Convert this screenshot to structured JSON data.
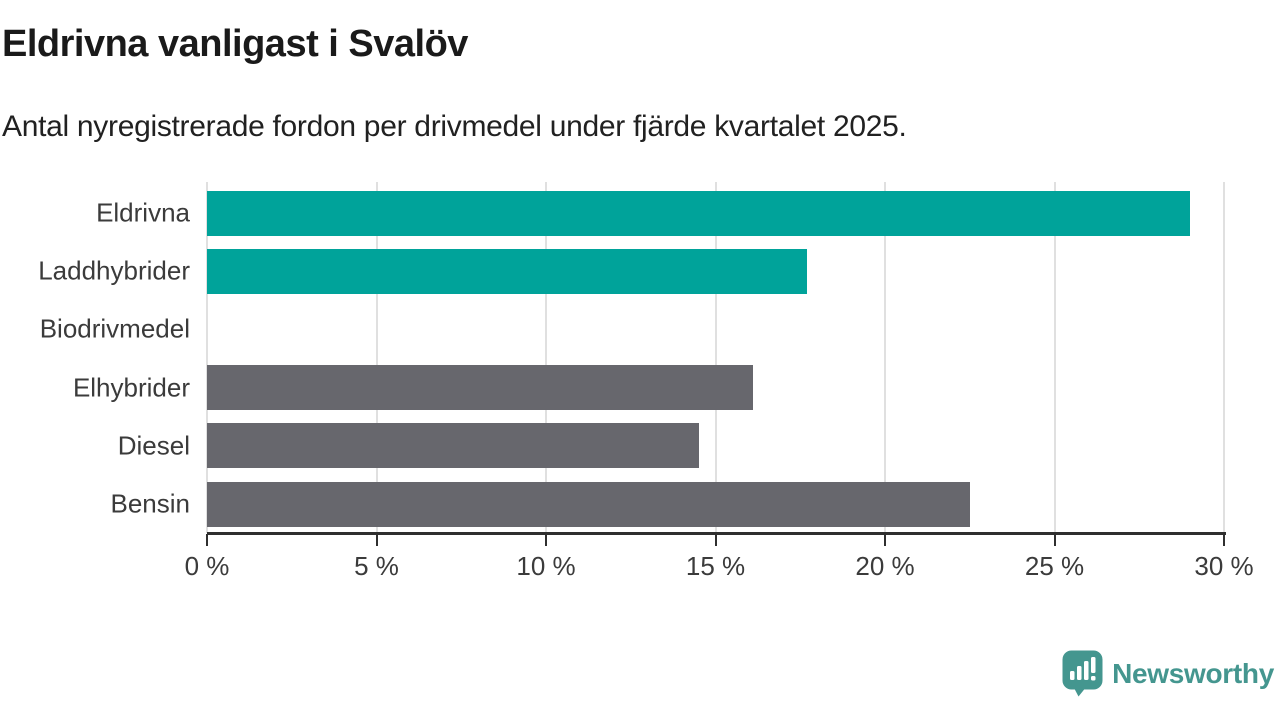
{
  "header": {
    "title": "Eldrivna vanligast i Svalöv",
    "subtitle": "Antal nyregistrerade fordon per drivmedel under fjärde kvartalet 2025."
  },
  "chart_data": {
    "type": "bar",
    "orientation": "horizontal",
    "title": "Eldrivna vanligast i Svalöv",
    "subtitle": "Antal nyregistrerade fordon per drivmedel under fjärde kvartalet 2025.",
    "categories": [
      "Eldrivna",
      "Laddhybrider",
      "Biodrivmedel",
      "Elhybrider",
      "Diesel",
      "Bensin"
    ],
    "values": [
      29.0,
      17.7,
      0,
      16.1,
      14.5,
      22.5
    ],
    "unit": "%",
    "bar_colors": [
      "#00a39a",
      "#00a39a",
      "#00a39a",
      "#67676d",
      "#67676d",
      "#67676d"
    ],
    "highlight_color": "#00a39a",
    "default_color": "#67676d",
    "xlim": [
      0,
      30
    ],
    "x_ticks": [
      {
        "value": 0,
        "label": "0 %"
      },
      {
        "value": 5,
        "label": "5 %"
      },
      {
        "value": 10,
        "label": "10 %"
      },
      {
        "value": 15,
        "label": "15 %"
      },
      {
        "value": 20,
        "label": "20 %"
      },
      {
        "value": 25,
        "label": "25 %"
      },
      {
        "value": 30,
        "label": "30 %"
      }
    ],
    "grid": true,
    "gridline_color": "#e0e0e0",
    "axis_color": "#2f2f2f",
    "label_color": "#3b3b3b",
    "legend": "none"
  },
  "footer": {
    "logo_text": "Newsworthy",
    "logo_color": "#44968f"
  }
}
